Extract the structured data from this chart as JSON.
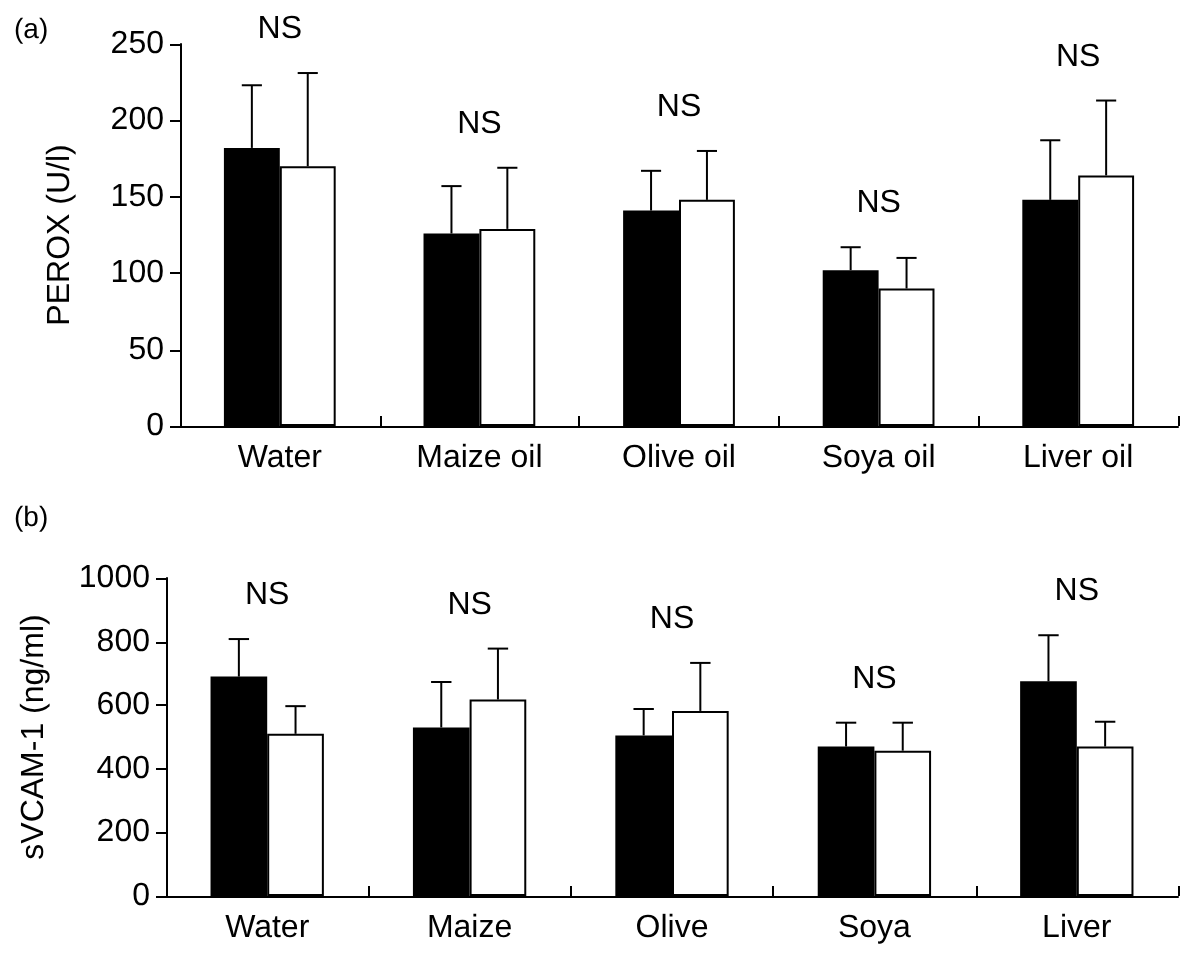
{
  "chart_data": [
    {
      "type": "bar",
      "title": "(a)",
      "ylabel": "PEROX (U/l)",
      "categories": [
        "Water",
        "Maize oil",
        "Olive oil",
        "Soya oil",
        "Liver oil"
      ],
      "series": [
        {
          "color": "#000000",
          "values": [
            182,
            126,
            141,
            102,
            148
          ],
          "errors": [
            [
              182,
              223
            ],
            [
              126,
              157
            ],
            [
              141,
              167
            ],
            [
              102,
              117
            ],
            [
              148,
              187
            ]
          ]
        },
        {
          "color": "#ffffff",
          "values": [
            170,
            129,
            148,
            90,
            164
          ],
          "errors": [
            [
              170,
              231
            ],
            [
              129,
              169
            ],
            [
              148,
              180
            ],
            [
              90,
              110
            ],
            [
              164,
              213
            ]
          ]
        }
      ],
      "ylim": [
        0,
        250
      ],
      "yticks": [
        0,
        50,
        100,
        150,
        200,
        250
      ],
      "grid": false,
      "annotations": [
        "NS",
        "NS",
        "NS",
        "NS",
        "NS"
      ]
    },
    {
      "type": "bar",
      "title": "(b)",
      "ylabel": "sVCAM-1 (ng/ml)",
      "categories": [
        "Water",
        "Maize",
        "Olive",
        "Soya",
        "Liver"
      ],
      "series": [
        {
          "color": "#000000",
          "values": [
            690,
            530,
            505,
            470,
            675
          ],
          "errors": [
            [
              690,
              808
            ],
            [
              530,
              673
            ],
            [
              505,
              588
            ],
            [
              470,
              545
            ],
            [
              675,
              820
            ]
          ]
        },
        {
          "color": "#ffffff",
          "values": [
            510,
            618,
            582,
            457,
            470
          ],
          "errors": [
            [
              510,
              597
            ],
            [
              618,
              778
            ],
            [
              582,
              733
            ],
            [
              457,
              545
            ],
            [
              470,
              548
            ]
          ]
        }
      ],
      "ylim": [
        0,
        1000
      ],
      "yticks": [
        0,
        200,
        400,
        600,
        800,
        1000
      ],
      "grid": false,
      "annotations": [
        "NS",
        "NS",
        "NS",
        "NS",
        "NS"
      ]
    }
  ]
}
